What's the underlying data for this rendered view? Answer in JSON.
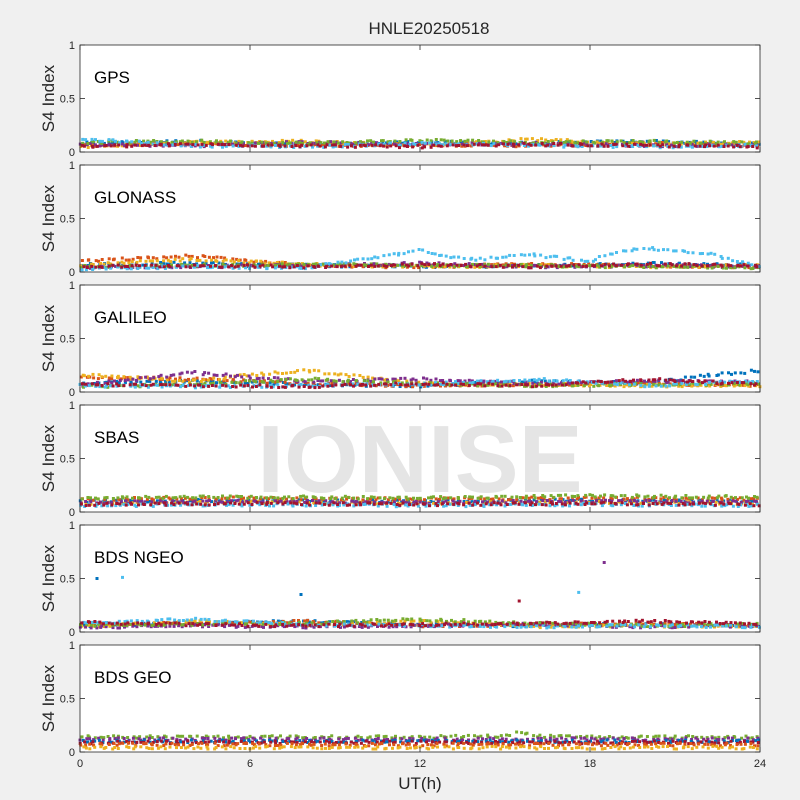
{
  "figure": {
    "title": "HNLE20250518",
    "watermark": "IONISE",
    "xlabel": "UT(h)",
    "xticks": [
      "0",
      "6",
      "12",
      "18",
      "24"
    ],
    "xlim": [
      0,
      24
    ],
    "background": "#f0f0f0",
    "axes_background": "#ffffff"
  },
  "colors": [
    "#0072bd",
    "#d95319",
    "#edb120",
    "#7e2f8e",
    "#77ac30",
    "#4dbeee",
    "#a2142f"
  ],
  "chart_data": [
    {
      "type": "scatter",
      "panel": "GPS",
      "ylabel": "S4 Index",
      "yticks": [
        "0",
        "0.5",
        "1"
      ],
      "ylim": [
        0,
        1
      ],
      "series": [
        {
          "color": "#0072bd",
          "x": [
            0,
            4,
            8,
            12,
            16,
            20,
            24
          ],
          "y": [
            0.08,
            0.1,
            0.07,
            0.09,
            0.08,
            0.1,
            0.07
          ]
        },
        {
          "color": "#d95319",
          "x": [
            0,
            4,
            8,
            12,
            16,
            20,
            24
          ],
          "y": [
            0.06,
            0.08,
            0.06,
            0.07,
            0.06,
            0.08,
            0.06
          ]
        },
        {
          "color": "#edb120",
          "x": [
            0,
            4,
            8,
            12,
            16,
            20,
            24
          ],
          "y": [
            0.05,
            0.09,
            0.1,
            0.06,
            0.12,
            0.07,
            0.09
          ]
        },
        {
          "color": "#7e2f8e",
          "x": [
            0,
            4,
            8,
            12,
            16,
            20,
            24
          ],
          "y": [
            0.07,
            0.06,
            0.09,
            0.07,
            0.08,
            0.06,
            0.07
          ]
        },
        {
          "color": "#77ac30",
          "x": [
            0,
            4,
            8,
            12,
            16,
            20,
            24
          ],
          "y": [
            0.09,
            0.1,
            0.08,
            0.11,
            0.09,
            0.1,
            0.08
          ]
        },
        {
          "color": "#4dbeee",
          "x": [
            0,
            4,
            8,
            12,
            16,
            20,
            24
          ],
          "y": [
            0.12,
            0.06,
            0.05,
            0.08,
            0.06,
            0.05,
            0.06
          ]
        },
        {
          "color": "#a2142f",
          "x": [
            0,
            4,
            8,
            12,
            16,
            20,
            24
          ],
          "y": [
            0.05,
            0.07,
            0.06,
            0.05,
            0.07,
            0.06,
            0.05
          ]
        }
      ]
    },
    {
      "type": "scatter",
      "panel": "GLONASS",
      "ylabel": "S4 Index",
      "yticks": [
        "0",
        "0.5",
        "1"
      ],
      "ylim": [
        0,
        1
      ],
      "series": [
        {
          "color": "#0072bd",
          "x": [
            0,
            4,
            8,
            12,
            16,
            20,
            24
          ],
          "y": [
            0.07,
            0.08,
            0.06,
            0.05,
            0.06,
            0.08,
            0.06
          ]
        },
        {
          "color": "#d95319",
          "x": [
            0,
            4,
            8,
            12,
            16,
            20,
            24
          ],
          "y": [
            0.1,
            0.15,
            0.06,
            0.05,
            0.07,
            0.06,
            0.05
          ]
        },
        {
          "color": "#edb120",
          "x": [
            0,
            4,
            8,
            12,
            16,
            20,
            24
          ],
          "y": [
            0.06,
            0.12,
            0.07,
            0.05,
            0.06,
            0.05,
            0.06
          ]
        },
        {
          "color": "#7e2f8e",
          "x": [
            0,
            4,
            8,
            12,
            16,
            20,
            24
          ],
          "y": [
            0.04,
            0.05,
            0.06,
            0.08,
            0.05,
            0.06,
            0.05
          ]
        },
        {
          "color": "#77ac30",
          "x": [
            0,
            4,
            8,
            12,
            16,
            20,
            24
          ],
          "y": [
            0.05,
            0.06,
            0.07,
            0.06,
            0.06,
            0.05,
            0.04
          ]
        },
        {
          "color": "#4dbeee",
          "x": [
            0,
            4,
            8,
            12,
            13,
            14,
            16,
            18,
            19,
            20,
            22,
            24
          ],
          "y": [
            0.03,
            0.05,
            0.04,
            0.2,
            0.14,
            0.12,
            0.16,
            0.1,
            0.2,
            0.22,
            0.18,
            0.05
          ]
        },
        {
          "color": "#a2142f",
          "x": [
            0,
            4,
            8,
            12,
            16,
            20,
            24
          ],
          "y": [
            0.05,
            0.06,
            0.05,
            0.07,
            0.05,
            0.07,
            0.06
          ]
        }
      ]
    },
    {
      "type": "scatter",
      "panel": "GALILEO",
      "ylabel": "S4 Index",
      "yticks": [
        "0",
        "0.5",
        "1"
      ],
      "ylim": [
        0,
        1
      ],
      "series": [
        {
          "color": "#0072bd",
          "x": [
            0,
            4,
            8,
            12,
            16,
            20,
            22,
            24
          ],
          "y": [
            0.08,
            0.1,
            0.07,
            0.06,
            0.1,
            0.08,
            0.15,
            0.2
          ]
        },
        {
          "color": "#d95319",
          "x": [
            0,
            4,
            8,
            12,
            16,
            20,
            24
          ],
          "y": [
            0.14,
            0.12,
            0.08,
            0.06,
            0.07,
            0.08,
            0.06
          ]
        },
        {
          "color": "#edb120",
          "x": [
            0,
            4,
            6,
            8,
            12,
            16,
            20,
            24
          ],
          "y": [
            0.16,
            0.1,
            0.16,
            0.2,
            0.08,
            0.07,
            0.06,
            0.06
          ]
        },
        {
          "color": "#7e2f8e",
          "x": [
            0,
            4,
            8,
            12,
            16,
            20,
            24
          ],
          "y": [
            0.06,
            0.18,
            0.1,
            0.12,
            0.08,
            0.1,
            0.09
          ]
        },
        {
          "color": "#77ac30",
          "x": [
            0,
            4,
            8,
            12,
            16,
            20,
            24
          ],
          "y": [
            0.05,
            0.07,
            0.12,
            0.08,
            0.06,
            0.07,
            0.08
          ]
        },
        {
          "color": "#4dbeee",
          "x": [
            0,
            4,
            8,
            12,
            16,
            20,
            24
          ],
          "y": [
            0.06,
            0.05,
            0.06,
            0.07,
            0.12,
            0.06,
            0.1
          ]
        },
        {
          "color": "#a2142f",
          "x": [
            0,
            4,
            8,
            12,
            16,
            20,
            24
          ],
          "y": [
            0.07,
            0.06,
            0.05,
            0.08,
            0.06,
            0.12,
            0.07
          ]
        }
      ]
    },
    {
      "type": "scatter",
      "panel": "SBAS",
      "ylabel": "S4 Index",
      "yticks": [
        "0",
        "0.5",
        "1"
      ],
      "ylim": [
        0,
        1
      ],
      "series": [
        {
          "color": "#0072bd",
          "x": [
            0,
            6,
            12,
            18,
            24
          ],
          "y": [
            0.1,
            0.11,
            0.1,
            0.11,
            0.1
          ]
        },
        {
          "color": "#d95319",
          "x": [
            0,
            6,
            12,
            18,
            24
          ],
          "y": [
            0.12,
            0.13,
            0.12,
            0.13,
            0.12
          ]
        },
        {
          "color": "#edb120",
          "x": [
            0,
            6,
            12,
            18,
            24
          ],
          "y": [
            0.08,
            0.09,
            0.08,
            0.09,
            0.08
          ]
        },
        {
          "color": "#7e2f8e",
          "x": [
            0,
            6,
            12,
            18,
            24
          ],
          "y": [
            0.09,
            0.1,
            0.09,
            0.1,
            0.09
          ]
        },
        {
          "color": "#77ac30",
          "x": [
            0,
            6,
            12,
            18,
            24
          ],
          "y": [
            0.13,
            0.14,
            0.13,
            0.15,
            0.14
          ]
        },
        {
          "color": "#4dbeee",
          "x": [
            0,
            6,
            12,
            18,
            24
          ],
          "y": [
            0.06,
            0.07,
            0.06,
            0.07,
            0.06
          ]
        },
        {
          "color": "#a2142f",
          "x": [
            0,
            6,
            12,
            18,
            24
          ],
          "y": [
            0.07,
            0.08,
            0.07,
            0.08,
            0.07
          ]
        }
      ]
    },
    {
      "type": "scatter",
      "panel": "BDS NGEO",
      "ylabel": "S4 Index",
      "yticks": [
        "0",
        "0.5",
        "1"
      ],
      "ylim": [
        0,
        1
      ],
      "series": [
        {
          "color": "#0072bd",
          "x": [
            0,
            4,
            8,
            12,
            16,
            20,
            24
          ],
          "y": [
            0.06,
            0.08,
            0.1,
            0.07,
            0.06,
            0.07,
            0.06
          ]
        },
        {
          "color": "#d95319",
          "x": [
            0,
            4,
            8,
            12,
            16,
            20,
            24
          ],
          "y": [
            0.07,
            0.08,
            0.1,
            0.06,
            0.07,
            0.08,
            0.06
          ]
        },
        {
          "color": "#edb120",
          "x": [
            0,
            4,
            8,
            12,
            16,
            20,
            24
          ],
          "y": [
            0.05,
            0.1,
            0.06,
            0.1,
            0.05,
            0.06,
            0.05
          ]
        },
        {
          "color": "#7e2f8e",
          "x": [
            0,
            4,
            8,
            12,
            16,
            20,
            24
          ],
          "y": [
            0.04,
            0.06,
            0.05,
            0.06,
            0.07,
            0.05,
            0.06
          ]
        },
        {
          "color": "#77ac30",
          "x": [
            0,
            4,
            8,
            12,
            16,
            20,
            24
          ],
          "y": [
            0.06,
            0.07,
            0.08,
            0.12,
            0.08,
            0.06,
            0.07
          ]
        },
        {
          "color": "#4dbeee",
          "x": [
            0,
            4,
            8,
            12,
            16,
            20,
            24
          ],
          "y": [
            0.08,
            0.12,
            0.07,
            0.06,
            0.05,
            0.06,
            0.05
          ]
        },
        {
          "color": "#a2142f",
          "x": [
            0,
            4,
            8,
            12,
            16,
            20,
            24
          ],
          "y": [
            0.09,
            0.07,
            0.06,
            0.07,
            0.08,
            0.1,
            0.08
          ]
        }
      ],
      "outliers": [
        {
          "x": 0.6,
          "y": 0.5,
          "color": "#0072bd"
        },
        {
          "x": 1.5,
          "y": 0.51,
          "color": "#4dbeee"
        },
        {
          "x": 7.8,
          "y": 0.35,
          "color": "#0072bd"
        },
        {
          "x": 15.5,
          "y": 0.29,
          "color": "#a2142f"
        },
        {
          "x": 17.6,
          "y": 0.37,
          "color": "#4dbeee"
        },
        {
          "x": 18.5,
          "y": 0.65,
          "color": "#7e2f8e"
        }
      ]
    },
    {
      "type": "scatter",
      "panel": "BDS GEO",
      "ylabel": "S4 Index",
      "yticks": [
        "0",
        "0.5",
        "1"
      ],
      "ylim": [
        0,
        1
      ],
      "series": [
        {
          "color": "#77ac30",
          "x": [
            0,
            6,
            12,
            15,
            15.5,
            16,
            18,
            24
          ],
          "y": [
            0.14,
            0.14,
            0.14,
            0.15,
            0.19,
            0.15,
            0.14,
            0.14
          ]
        },
        {
          "color": "#7e2f8e",
          "x": [
            0,
            6,
            12,
            18,
            24
          ],
          "y": [
            0.12,
            0.12,
            0.12,
            0.12,
            0.12
          ]
        },
        {
          "color": "#0072bd",
          "x": [
            0,
            6,
            12,
            18,
            24
          ],
          "y": [
            0.1,
            0.1,
            0.1,
            0.1,
            0.1
          ]
        },
        {
          "color": "#a2142f",
          "x": [
            0,
            6,
            12,
            18,
            24
          ],
          "y": [
            0.09,
            0.09,
            0.09,
            0.09,
            0.09
          ]
        },
        {
          "color": "#d95319",
          "x": [
            0,
            6,
            12,
            18,
            24
          ],
          "y": [
            0.07,
            0.07,
            0.07,
            0.07,
            0.07
          ]
        },
        {
          "color": "#edb120",
          "x": [
            0,
            6,
            12,
            18,
            24
          ],
          "y": [
            0.04,
            0.04,
            0.04,
            0.04,
            0.04
          ]
        }
      ]
    }
  ]
}
